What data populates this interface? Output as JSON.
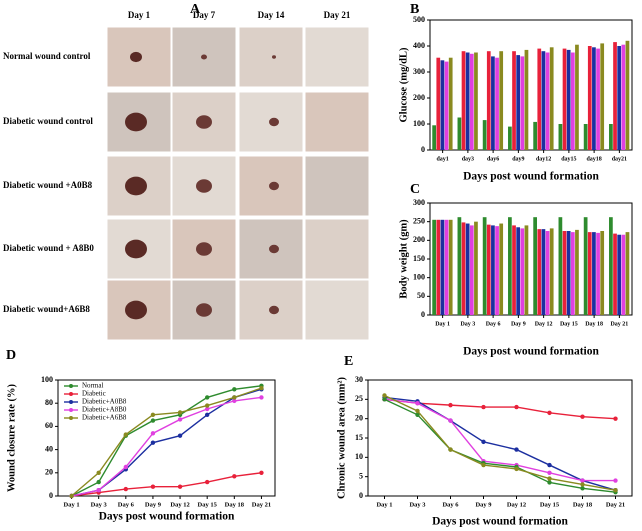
{
  "panel_a": {
    "label": "A",
    "days": [
      "Day 1",
      "Day 7",
      "Day 14",
      "Day 21"
    ],
    "conditions": [
      "Normal wound  control",
      "Diabetic wound  control",
      "Diabetic wound  +A0B8",
      "Diabetic wound  + A8B0",
      "Diabetic wound+A6B8"
    ]
  },
  "chart_data": [
    {
      "type": "bar",
      "label": "B",
      "ylabel": "Glucose (mg/dL)",
      "xlabel": "Days post wound formation",
      "categories": [
        "day1",
        "day3",
        "day6",
        "day9",
        "day12",
        "day15",
        "day18",
        "day21"
      ],
      "ylim": [
        0,
        500
      ],
      "yticks": [
        0,
        100,
        200,
        300,
        400,
        500
      ],
      "series": [
        {
          "color": "#2e8b2e",
          "values": [
            95,
            125,
            115,
            90,
            108,
            100,
            100,
            100
          ]
        },
        {
          "color": "#e8213a",
          "values": [
            355,
            380,
            380,
            380,
            390,
            390,
            400,
            415
          ]
        },
        {
          "color": "#1c2fa0",
          "values": [
            345,
            375,
            360,
            365,
            380,
            385,
            395,
            400
          ]
        },
        {
          "color": "#e040e0",
          "values": [
            340,
            370,
            355,
            360,
            375,
            375,
            390,
            405
          ]
        },
        {
          "color": "#8a8a20",
          "values": [
            355,
            375,
            380,
            385,
            395,
            405,
            410,
            420
          ]
        }
      ]
    },
    {
      "type": "bar",
      "label": "C",
      "ylabel": "Body weight (gm)",
      "xlabel": "Days post wound formation",
      "categories": [
        "Day 1",
        "Day 3",
        "Day 6",
        "Day 9",
        "Day 12",
        "Day 15",
        "Day 18",
        "Day 21"
      ],
      "ylim": [
        0,
        300
      ],
      "yticks": [
        0,
        50,
        100,
        150,
        200,
        250,
        300
      ],
      "series": [
        {
          "color": "#2e8b2e",
          "values": [
            255,
            262,
            262,
            262,
            262,
            262,
            262,
            262
          ]
        },
        {
          "color": "#e8213a",
          "values": [
            255,
            248,
            242,
            240,
            230,
            225,
            222,
            218
          ]
        },
        {
          "color": "#1c2fa0",
          "values": [
            255,
            245,
            240,
            235,
            230,
            225,
            222,
            215
          ]
        },
        {
          "color": "#e040e0",
          "values": [
            255,
            240,
            238,
            232,
            225,
            222,
            220,
            215
          ]
        },
        {
          "color": "#8a8a20",
          "values": [
            255,
            250,
            245,
            240,
            232,
            228,
            225,
            222
          ]
        }
      ]
    },
    {
      "type": "line",
      "label": "D",
      "ylabel": "Wound closure rate (%)",
      "xlabel": "Days post wound formation",
      "categories": [
        "Day 1",
        "Day 3",
        "Day 6",
        "Day 9",
        "Day 12",
        "Day 15",
        "Day 18",
        "Day 21"
      ],
      "ylim": [
        0,
        100
      ],
      "yticks": [
        0,
        20,
        40,
        60,
        80,
        100
      ],
      "legend": "upper-left",
      "series": [
        {
          "name": "Normal",
          "color": "#2e8b2e",
          "values": [
            0,
            12,
            52,
            65,
            70,
            85,
            92,
            95
          ]
        },
        {
          "name": "Diabetic",
          "color": "#e8213a",
          "values": [
            0,
            3,
            6,
            8,
            8,
            12,
            17,
            20
          ]
        },
        {
          "name": "Diabetic+A0B8",
          "color": "#1c2fa0",
          "values": [
            0,
            5,
            23,
            46,
            52,
            70,
            85,
            92
          ]
        },
        {
          "name": "Diabetic+A8B0",
          "color": "#e040e0",
          "values": [
            0,
            5,
            25,
            54,
            66,
            75,
            82,
            85
          ]
        },
        {
          "name": "Diabetic+A6B8",
          "color": "#8a8a20",
          "values": [
            0,
            20,
            53,
            70,
            72,
            78,
            85,
            93
          ]
        }
      ]
    },
    {
      "type": "line",
      "label": "E",
      "ylabel": "Chronic wound area (mm²)",
      "xlabel": "Days post wound formation",
      "categories": [
        "Day 1",
        "Day 3",
        "Day 6",
        "Day 9",
        "Day 12",
        "Day 15",
        "Day 18",
        "Day 21"
      ],
      "ylim": [
        0,
        30
      ],
      "yticks": [
        0,
        5,
        10,
        15,
        20,
        25,
        30
      ],
      "series": [
        {
          "color": "#e8213a",
          "values": [
            25,
            24,
            23.5,
            23,
            23,
            21.5,
            20.5,
            20
          ]
        },
        {
          "color": "#1c2fa0",
          "values": [
            25.5,
            24.5,
            19.5,
            14,
            12,
            8,
            4,
            1.5
          ]
        },
        {
          "color": "#e040e0",
          "values": [
            25,
            24,
            19.5,
            9,
            8,
            6,
            4,
            4
          ]
        },
        {
          "color": "#2e8b2e",
          "values": [
            25,
            21,
            12,
            8.5,
            7.5,
            3.5,
            2,
            1
          ]
        },
        {
          "color": "#8a8a20",
          "values": [
            26,
            22,
            12,
            8,
            7,
            4.5,
            3,
            1.5
          ]
        }
      ]
    }
  ]
}
